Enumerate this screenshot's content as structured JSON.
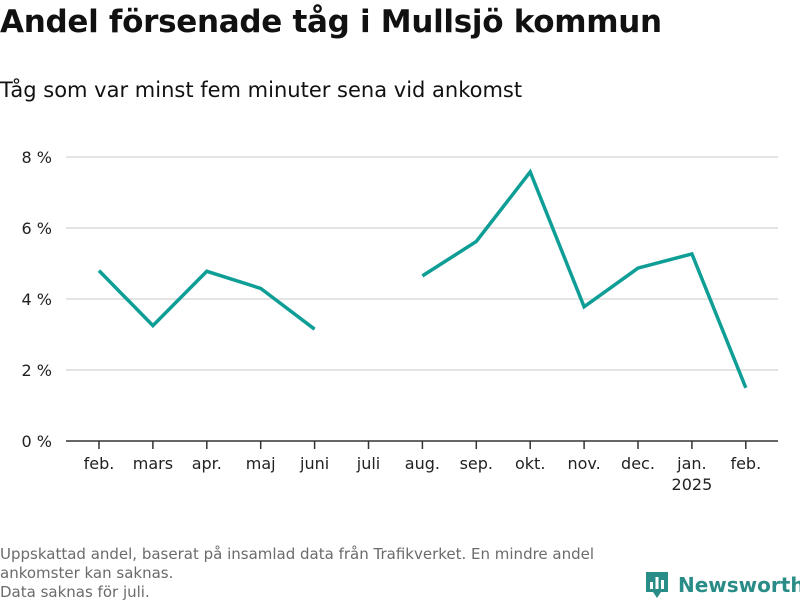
{
  "title": "Andel försenade tåg i Mullsjö kommun",
  "subtitle": "Tåg som var minst fem minuter sena vid ankomst",
  "footnotes": [
    "Uppskattad andel, baserat på insamlad data från Trafikverket. En mindre andel ankomster kan saknas.",
    "Data saknas för juli."
  ],
  "brand": {
    "name": "Newsworthy",
    "icon": "bar-chart-logo-icon",
    "color": "#2a8c86"
  },
  "chart_data": {
    "type": "line",
    "categories": [
      "feb.",
      "mars",
      "apr.",
      "maj",
      "juni",
      "juli",
      "aug.",
      "sep.",
      "okt.",
      "nov.",
      "dec.",
      "jan.",
      "feb."
    ],
    "year_label": {
      "category_index": 11,
      "text": "2025"
    },
    "series": [
      {
        "values": [
          4.8,
          3.25,
          4.78,
          4.3,
          3.15,
          null,
          4.65,
          5.62,
          7.58,
          3.78,
          4.87,
          5.27,
          1.5
        ],
        "color": "#0e9e96"
      }
    ],
    "yticks": [
      {
        "value": 0,
        "label": "0 %"
      },
      {
        "value": 2,
        "label": "2 %"
      },
      {
        "value": 4,
        "label": "4 %"
      },
      {
        "value": 6,
        "label": "6 %"
      },
      {
        "value": 8,
        "label": "8 %"
      }
    ],
    "ylim": [
      0,
      8
    ],
    "grid": true,
    "xlabel": "",
    "ylabel": ""
  }
}
